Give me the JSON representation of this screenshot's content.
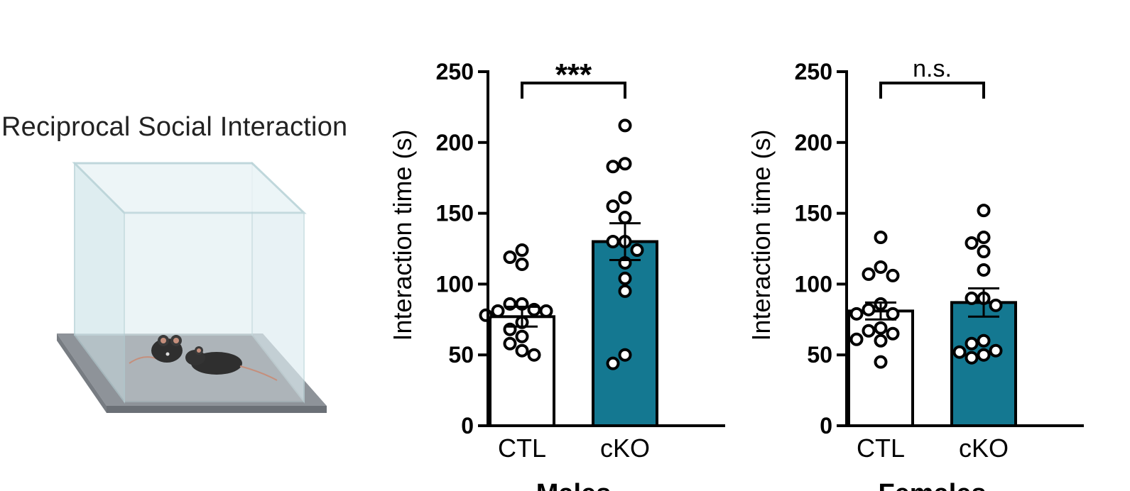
{
  "figure": {
    "title": "Reciprocal Social Interaction",
    "arena_icon": "mouse-social-arena-illustration"
  },
  "colors": {
    "ctl_fill": "#ffffff",
    "cko_fill": "#147891",
    "stroke": "#000000"
  },
  "chart_data": [
    {
      "type": "bar",
      "group": "Males",
      "categories": [
        "CTL",
        "cKO"
      ],
      "values": [
        77,
        130
      ],
      "sem": [
        7,
        13
      ],
      "ylabel": "Interaction time (s)",
      "ylim": [
        0,
        250
      ],
      "yticks": [
        "0",
        "50",
        "100",
        "150",
        "200",
        "250"
      ],
      "significance": "***",
      "points": [
        [
          124,
          119,
          114,
          86,
          86,
          82,
          81,
          81,
          78,
          73,
          68,
          63,
          58,
          53,
          50
        ],
        [
          212,
          185,
          183,
          161,
          155,
          147,
          130,
          130,
          124,
          115,
          104,
          95,
          50,
          44
        ]
      ]
    },
    {
      "type": "bar",
      "group": "Females",
      "categories": [
        "CTL",
        "cKO"
      ],
      "values": [
        81,
        87
      ],
      "sem": [
        6,
        10
      ],
      "ylabel": "Interaction time (s)",
      "ylim": [
        0,
        250
      ],
      "yticks": [
        "0",
        "50",
        "100",
        "150",
        "200",
        "250"
      ],
      "significance": "n.s.",
      "points": [
        [
          133,
          112,
          107,
          106,
          86,
          82,
          79,
          79,
          69,
          67,
          65,
          61,
          60,
          45
        ],
        [
          152,
          133,
          129,
          123,
          110,
          90,
          90,
          85,
          60,
          58,
          53,
          52,
          50,
          48
        ]
      ]
    }
  ]
}
